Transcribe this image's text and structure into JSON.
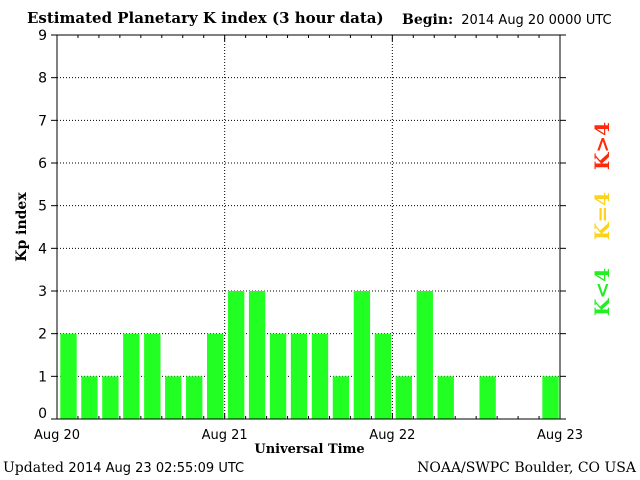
{
  "header": {
    "title": "Estimated Planetary K index (3 hour data)",
    "begin_label": "Begin:",
    "begin_value": "2014 Aug 20 0000 UTC"
  },
  "footer": {
    "updated_label": "Updated",
    "updated_value": "2014 Aug 23 02:55:09 UTC",
    "source": "NOAA/SWPC Boulder, CO USA"
  },
  "legend": [
    {
      "label": "K>4",
      "color": "#ff2a0a"
    },
    {
      "label": "K=4",
      "color": "#ffd21a"
    },
    {
      "label": "K<4",
      "color": "#22ee22"
    }
  ],
  "chart_data": {
    "type": "bar",
    "ylabel": "Kp index",
    "xlabel": "Universal Time",
    "ylim": [
      0,
      9
    ],
    "yticks": [
      0,
      1,
      2,
      3,
      4,
      5,
      6,
      7,
      8,
      9
    ],
    "xtick_labels": [
      "Aug 20",
      "Aug 21",
      "Aug 22",
      "Aug 23"
    ],
    "interval_hours": 3,
    "bar_color": "#22ff22",
    "grid": true,
    "values": [
      2,
      1,
      1,
      2,
      2,
      1,
      1,
      2,
      3,
      3,
      2,
      2,
      2,
      1,
      3,
      2,
      1,
      3,
      1,
      0,
      1,
      0,
      0,
      1
    ]
  }
}
